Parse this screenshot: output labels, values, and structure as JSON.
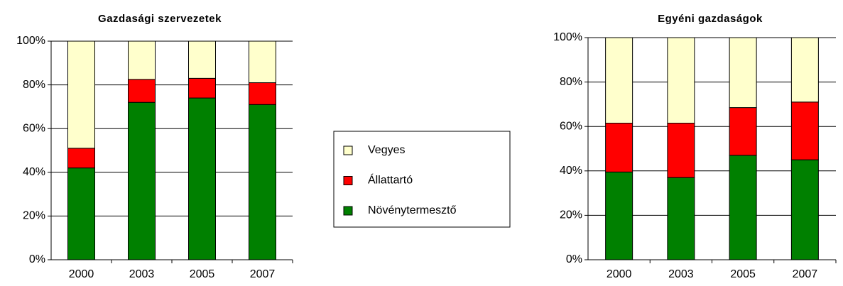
{
  "chart_data": [
    {
      "type": "stacked_bar",
      "title": "Gazdasági szervezetek",
      "categories": [
        "2000",
        "2003",
        "2005",
        "2007"
      ],
      "series": [
        {
          "name": "Növénytermesztő",
          "color": "#008000",
          "values": [
            42,
            72,
            74,
            71
          ]
        },
        {
          "name": "Állattartó",
          "color": "#ff0000",
          "values": [
            9,
            10.5,
            9,
            10
          ]
        },
        {
          "name": "Vegyes",
          "color": "#ffffcc",
          "values": [
            49,
            17.5,
            17,
            19
          ]
        }
      ],
      "ylim": [
        0,
        100
      ],
      "yticks": [
        {
          "value": 0,
          "label": "0%"
        },
        {
          "value": 20,
          "label": "20%"
        },
        {
          "value": 40,
          "label": "40%"
        },
        {
          "value": 60,
          "label": "60%"
        },
        {
          "value": 80,
          "label": "80%"
        },
        {
          "value": 100,
          "label": "100%"
        }
      ],
      "grid": true,
      "legend": "right"
    },
    {
      "type": "stacked_bar",
      "title": "Egyéni gazdaságok",
      "categories": [
        "2000",
        "2003",
        "2005",
        "2007"
      ],
      "series": [
        {
          "name": "Növénytermesztő",
          "color": "#008000",
          "values": [
            39.5,
            37,
            47,
            45
          ]
        },
        {
          "name": "Állattartó",
          "color": "#ff0000",
          "values": [
            22,
            24.5,
            21.5,
            26
          ]
        },
        {
          "name": "Vegyes",
          "color": "#ffffcc",
          "values": [
            38.5,
            38.5,
            31.5,
            29
          ]
        }
      ],
      "ylim": [
        0,
        100
      ],
      "yticks": [
        {
          "value": 0,
          "label": "0%"
        },
        {
          "value": 20,
          "label": "20%"
        },
        {
          "value": 40,
          "label": "40%"
        },
        {
          "value": 60,
          "label": "60%"
        },
        {
          "value": 80,
          "label": "80%"
        },
        {
          "value": 100,
          "label": "100%"
        }
      ],
      "grid": true
    }
  ]
}
